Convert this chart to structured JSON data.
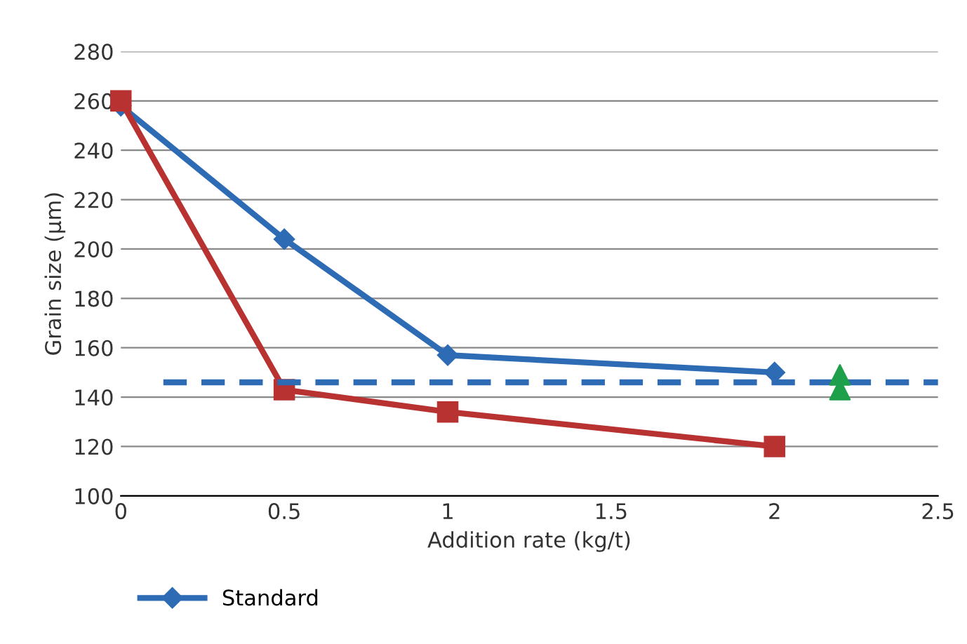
{
  "chart_data": {
    "type": "line",
    "xlabel": "Addition rate (kg/t)",
    "ylabel": "Grain size (µm)",
    "xlim": [
      0,
      2.5
    ],
    "xticks": [
      0,
      0.5,
      1,
      1.5,
      2,
      2.5
    ],
    "ylim": [
      100,
      280
    ],
    "yticks": [
      100,
      120,
      140,
      160,
      180,
      200,
      220,
      240,
      260,
      280
    ],
    "grid": "y",
    "legend": "bottom",
    "series": [
      {
        "name": "Standard",
        "color": "#2e6bb5",
        "x": [
          0,
          0.5,
          1,
          2
        ],
        "values": [
          258,
          204,
          157,
          150
        ],
        "marker": "diamond",
        "line_style": "solid"
      },
      {
        "color": "#b83232",
        "x": [
          0,
          0.5,
          1,
          2
        ],
        "values": [
          260,
          143,
          134,
          120
        ],
        "marker": "square",
        "line_style": "solid"
      },
      {
        "type": "scatter",
        "color": "#1ea04a",
        "x": [
          2.2,
          2.2
        ],
        "values": [
          149,
          143
        ],
        "marker": "triangle"
      },
      {
        "color": "#2e6bb5",
        "x": [
          0.13,
          2.5
        ],
        "values": [
          146,
          146
        ],
        "marker": "none",
        "line_style": "dashed"
      }
    ]
  }
}
